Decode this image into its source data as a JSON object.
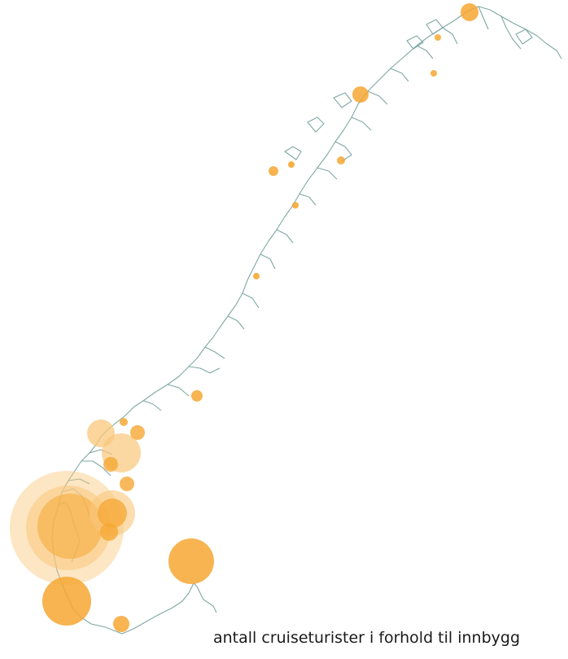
{
  "caption": "antall cruiseturister i forhold til innbygg",
  "colors": {
    "coast": "#7fa8a4",
    "bubble_strong": "#f6a733",
    "bubble_light": "#f9c77a"
  },
  "icon": "norway-coastline-map"
}
